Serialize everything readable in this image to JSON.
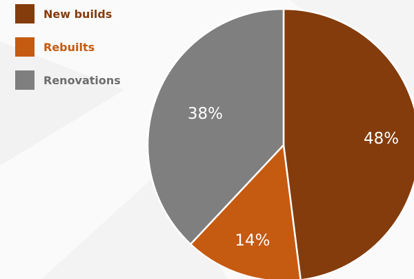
{
  "chart_data": {
    "type": "pie",
    "title": "",
    "legend_position": "top-left",
    "slices": [
      {
        "label": "New builds",
        "value": 48,
        "display": "48%",
        "color": "#843c0c",
        "label_color": "#ffffff"
      },
      {
        "label": "Rebuilts",
        "value": 14,
        "display": "14%",
        "color": "#c55a11",
        "label_color": "#ffffff"
      },
      {
        "label": "Renovations",
        "value": 38,
        "display": "38%",
        "color": "#7f7f7f",
        "label_color": "#ffffff"
      }
    ]
  }
}
